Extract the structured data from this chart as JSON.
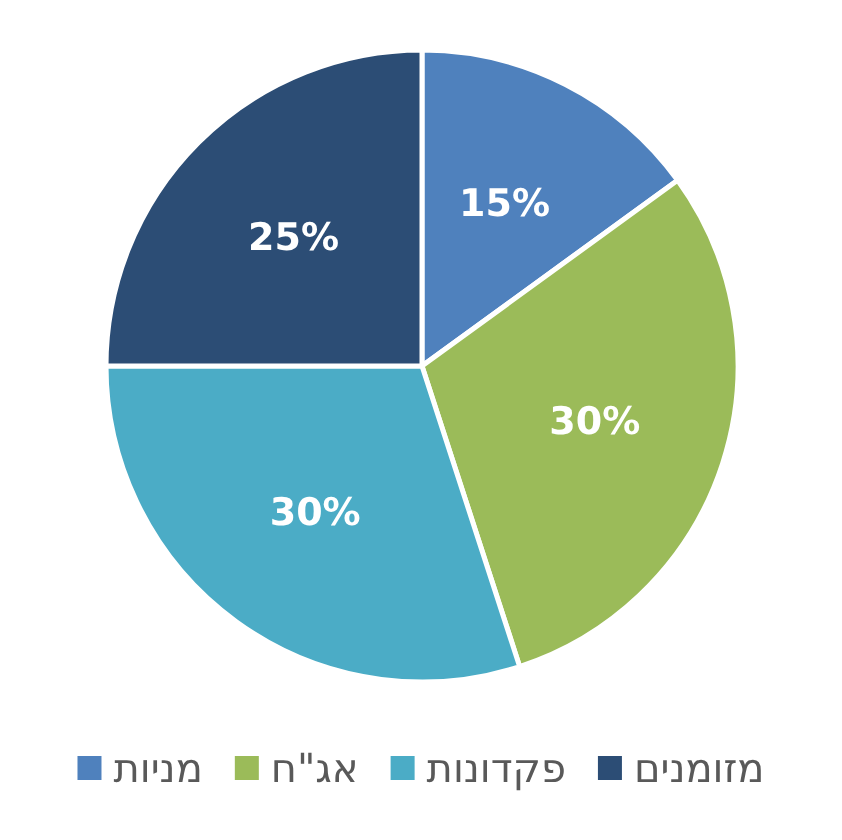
{
  "chart_data": {
    "type": "pie",
    "categories": [
      "מניות",
      "אג\"ח",
      "פקדונות",
      "מזומנים"
    ],
    "values": [
      15,
      30,
      30,
      25
    ],
    "colors": [
      "#4f81bd",
      "#9bbb59",
      "#4bacc6",
      "#2c4d75"
    ],
    "value_labels": [
      "15%",
      "30%",
      "30%",
      "25%"
    ],
    "legend": "bottom"
  }
}
